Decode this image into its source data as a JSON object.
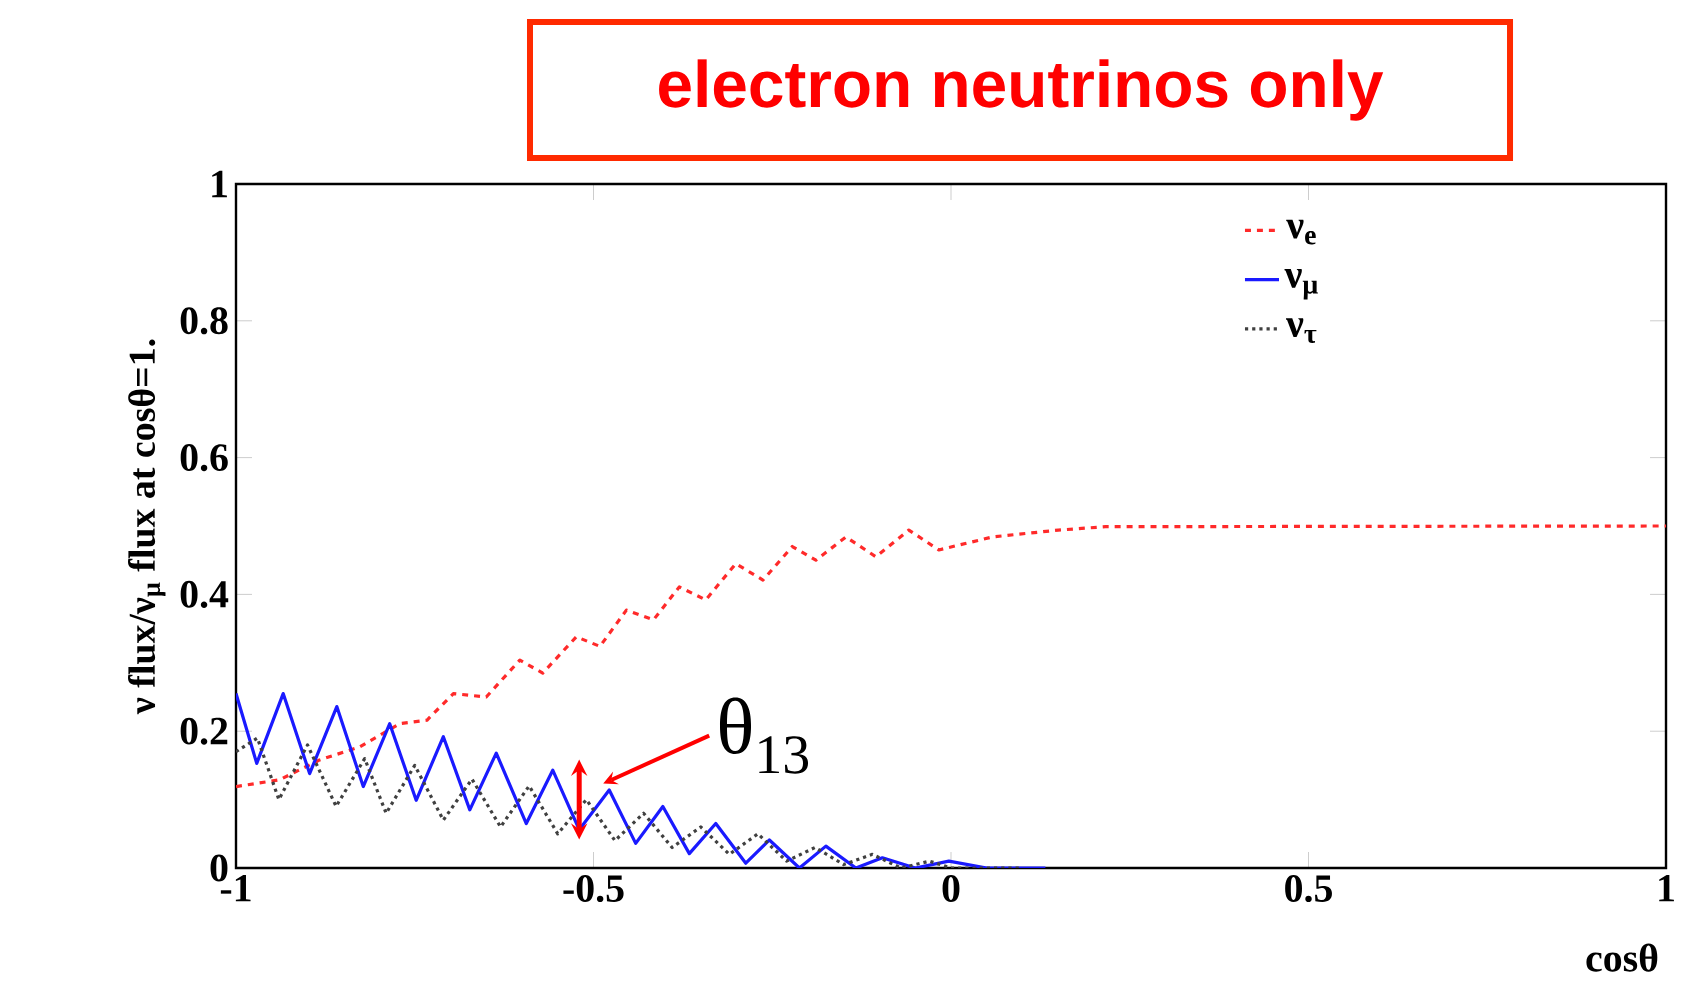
{
  "chart_data": {
    "type": "line",
    "title": "electron neutrinos only",
    "xlabel": "cosθ",
    "ylabel": "ν flux/ν$_{μ}$ flux at cosθ=1.",
    "xlim": [
      -1,
      1
    ],
    "ylim": [
      0,
      1
    ],
    "xticks": [
      {
        "value": -1,
        "label": "-1"
      },
      {
        "value": -0.5,
        "label": "-0.5"
      },
      0,
      0.5,
      1
    ],
    "yticks": [
      0,
      0.2,
      0.4,
      0.6,
      0.8,
      1
    ],
    "legend": "top right",
    "grid": false,
    "annotations": [
      {
        "text": "θ$_{13}$",
        "x": -0.52,
        "y": 0.1
      }
    ],
    "series": [
      {
        "name": "ν$_{e}$",
        "color": "#ff2a2a",
        "line_style": "dashed",
        "x": [
          -1,
          -0.939,
          -0.883,
          -0.827,
          -0.771,
          -0.733,
          -0.696,
          -0.65,
          -0.603,
          -0.571,
          -0.524,
          -0.491,
          -0.454,
          -0.416,
          -0.38,
          -0.343,
          -0.301,
          -0.263,
          -0.222,
          -0.189,
          -0.147,
          -0.105,
          -0.059,
          -0.017,
          0.058,
          0.15,
          0.216,
          1
        ],
        "values": [
          0.119,
          0.129,
          0.158,
          0.177,
          0.211,
          0.216,
          0.255,
          0.25,
          0.304,
          0.285,
          0.338,
          0.324,
          0.377,
          0.363,
          0.411,
          0.392,
          0.445,
          0.421,
          0.47,
          0.45,
          0.484,
          0.455,
          0.494,
          0.465,
          0.484,
          0.494,
          0.499,
          0.5
        ]
      },
      {
        "name": "ν$_{μ}$",
        "color": "#1a1aff",
        "line_style": "solid",
        "x": [
          -1,
          -0.971,
          -0.934,
          -0.897,
          -0.859,
          -0.822,
          -0.785,
          -0.748,
          -0.71,
          -0.673,
          -0.636,
          -0.594,
          -0.557,
          -0.52,
          -0.478,
          -0.441,
          -0.403,
          -0.366,
          -0.329,
          -0.287,
          -0.254,
          -0.212,
          -0.175,
          -0.133,
          -0.096,
          -0.05,
          -0.003,
          0.05,
          0.132
        ],
        "values": [
          0.255,
          0.153,
          0.255,
          0.138,
          0.236,
          0.119,
          0.211,
          0.099,
          0.192,
          0.085,
          0.168,
          0.065,
          0.143,
          0.056,
          0.114,
          0.036,
          0.09,
          0.021,
          0.065,
          0.007,
          0.041,
          0,
          0.032,
          0,
          0.015,
          0,
          0.01,
          0,
          0
        ]
      },
      {
        "name": "ν$_{τ}$",
        "color": "#404040",
        "line_style": "dotted",
        "x": [
          -1,
          -0.97,
          -0.94,
          -0.9,
          -0.86,
          -0.82,
          -0.79,
          -0.75,
          -0.71,
          -0.67,
          -0.63,
          -0.59,
          -0.55,
          -0.51,
          -0.47,
          -0.43,
          -0.39,
          -0.35,
          -0.31,
          -0.27,
          -0.23,
          -0.19,
          -0.15,
          -0.11,
          -0.07,
          -0.03,
          0,
          0.1
        ],
        "values": [
          0.17,
          0.19,
          0.1,
          0.18,
          0.09,
          0.16,
          0.08,
          0.15,
          0.07,
          0.13,
          0.06,
          0.12,
          0.05,
          0.1,
          0.04,
          0.08,
          0.03,
          0.06,
          0.02,
          0.05,
          0.01,
          0.03,
          0.005,
          0.02,
          0,
          0.01,
          0,
          0
        ]
      }
    ]
  }
}
